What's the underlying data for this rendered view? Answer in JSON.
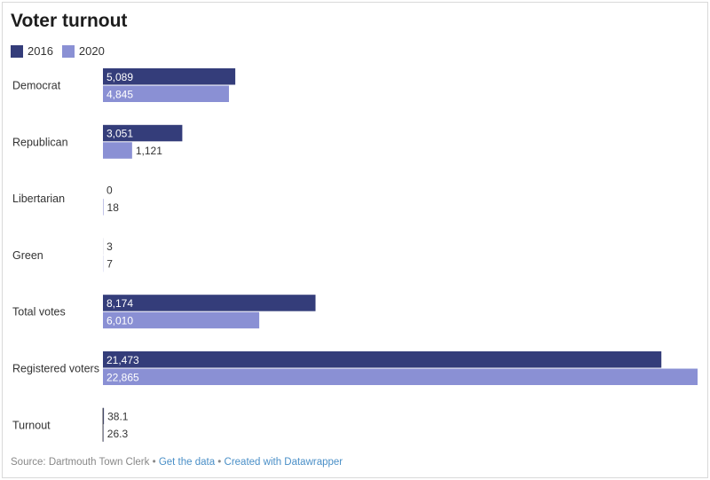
{
  "title": "Voter turnout",
  "colors": {
    "s2016": "#343d7a",
    "s2020": "#8a90d4",
    "axis": "#555555",
    "label_dark": "#333333",
    "label_light": "#ffffff"
  },
  "legend": {
    "item_2016": "2016",
    "item_2020": "2020"
  },
  "footer": {
    "source": "Source: Dartmouth Town Clerk",
    "sep1": " • ",
    "get_data": "Get the data",
    "sep2": " • ",
    "created_with": "Created with Datawrapper"
  },
  "chart_data": {
    "type": "bar",
    "orientation": "horizontal",
    "categories": [
      "Democrat",
      "Republican",
      "Libertarian",
      "Green",
      "Total votes",
      "Registered voters",
      "Turnout"
    ],
    "series": [
      {
        "name": "2016",
        "values": [
          5089,
          3051,
          0,
          3,
          8174,
          21473,
          38.1
        ]
      },
      {
        "name": "2020",
        "values": [
          4845,
          1121,
          18,
          7,
          6010,
          22865,
          26.3
        ]
      }
    ],
    "value_labels": {
      "2016": [
        "5,089",
        "3,051",
        "0",
        "3",
        "8,174",
        "21,473",
        "38.1"
      ],
      "2020": [
        "4,845",
        "1,121",
        "18",
        "7",
        "6,010",
        "22,865",
        "26.3"
      ]
    },
    "xlim": [
      0,
      22865
    ],
    "legend_position": "top-left",
    "grid": false
  }
}
